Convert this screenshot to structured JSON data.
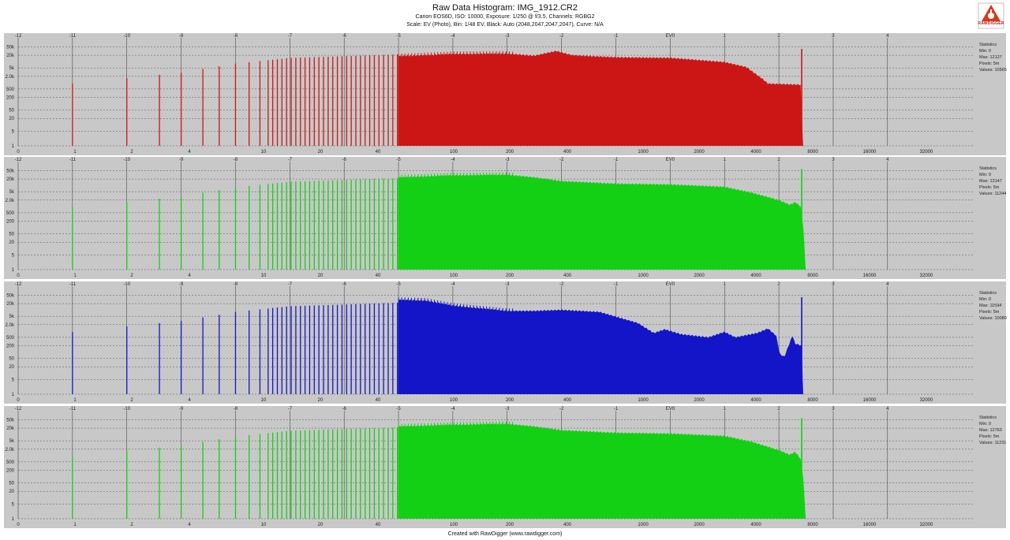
{
  "header": {
    "title": "Raw Data Histogram: IMG_1912.CR2",
    "line1": "Canon EOS6D, ISO: 10000, Exposure: 1/250 @ f/3.5, Channels: RGBG2",
    "line2": "Scale: EV (Photo), Bin: 1/48 EV, Black: Auto (2048,2047,2047,2047), Curve: N/A"
  },
  "footer": "Created with RawDigger (www.rawdigger.com)",
  "logo_text": "RAWDIGGER",
  "colors": {
    "panel_bg": "#c8c8c8",
    "red": "#cc1616",
    "green": "#14d014",
    "blue": "#1414c8",
    "grid": "#333333"
  },
  "chart_data": {
    "type": "bar",
    "ev_ticks": [
      "-12",
      "-11",
      "-10",
      "-9",
      "-8",
      "-7",
      "-6",
      "-5",
      "-4",
      "-3",
      "-2",
      "-1",
      "EV0",
      "1",
      "2",
      "3",
      "4"
    ],
    "raw_ticks": [
      "0",
      "1",
      "2",
      "4",
      "10",
      "20",
      "40",
      "100",
      "200",
      "400",
      "1000",
      "2000",
      "4000",
      "8000",
      "16000",
      "32000"
    ],
    "y_ticks": [
      "50k",
      "20k",
      "5k",
      "2.0k",
      "500",
      "200",
      "50",
      "20",
      "5",
      "1"
    ],
    "scale": "log",
    "series": [
      {
        "channel": "R",
        "stats": {
          "heading": "Statistics",
          "min": "Min: 0",
          "max": "Max: 12127",
          "pixels": "Pixels: 5m",
          "values": "Values: 10565"
        },
        "profile": [
          [
            -5,
            18000
          ],
          [
            -4,
            23000
          ],
          [
            -3,
            24000
          ],
          [
            -2.5,
            19000
          ],
          [
            -2.1,
            32000
          ],
          [
            -1.8,
            20000
          ],
          [
            -1,
            16000
          ],
          [
            0,
            15000
          ],
          [
            1,
            9500
          ],
          [
            1.4,
            5500
          ],
          [
            1.7,
            1500
          ],
          [
            1.8,
            900
          ],
          [
            2.4,
            800
          ],
          [
            2.45,
            0
          ]
        ],
        "spike_ev": 2.42,
        "spike_val": 40000
      },
      {
        "channel": "G",
        "stats": {
          "heading": "Statistics",
          "min": "Min: 0",
          "max": "Max: 13147",
          "pixels": "Pixels: 5m",
          "values": "Values: 11244"
        },
        "profile": [
          [
            -5,
            24000
          ],
          [
            -4,
            30000
          ],
          [
            -3,
            32000
          ],
          [
            -2.5,
            24000
          ],
          [
            -2,
            16000
          ],
          [
            -1,
            12000
          ],
          [
            0,
            11000
          ],
          [
            1,
            8500
          ],
          [
            1.5,
            4500
          ],
          [
            2,
            2000
          ],
          [
            2.2,
            1200
          ],
          [
            2.3,
            1600
          ],
          [
            2.4,
            1000
          ],
          [
            2.45,
            100
          ],
          [
            2.5,
            0
          ]
        ],
        "spike_ev": 2.42,
        "spike_val": 60000
      },
      {
        "channel": "B",
        "stats": {
          "heading": "Statistics",
          "min": "Min: 0",
          "max": "Max: 11594",
          "pixels": "Pixels: 5m",
          "values": "Values: 10080"
        },
        "profile": [
          [
            -5,
            30000
          ],
          [
            -4.5,
            28000
          ],
          [
            -4,
            16000
          ],
          [
            -3,
            9000
          ],
          [
            -2.5,
            9000
          ],
          [
            -2,
            10000
          ],
          [
            -1.3,
            8000
          ],
          [
            -0.6,
            2400
          ],
          [
            -0.3,
            800
          ],
          [
            -0.1,
            1200
          ],
          [
            0.2,
            700
          ],
          [
            0.7,
            500
          ],
          [
            1,
            900
          ],
          [
            1.2,
            500
          ],
          [
            1.6,
            800
          ],
          [
            1.8,
            1300
          ],
          [
            1.95,
            600
          ],
          [
            2.02,
            80
          ],
          [
            2.1,
            60
          ],
          [
            2.25,
            600
          ],
          [
            2.3,
            250
          ],
          [
            2.42,
            200
          ],
          [
            2.45,
            0
          ]
        ],
        "spike_ev": 2.42,
        "spike_val": 40000
      },
      {
        "channel": "G2",
        "stats": {
          "heading": "Statistics",
          "min": "Min: 0",
          "max": "Max: 12763",
          "pixels": "Pixels: 5m",
          "values": "Values: 11231"
        },
        "profile": [
          [
            -5,
            24000
          ],
          [
            -4,
            29000
          ],
          [
            -3,
            32000
          ],
          [
            -2.5,
            24000
          ],
          [
            -2,
            16000
          ],
          [
            -1,
            12000
          ],
          [
            0,
            11000
          ],
          [
            1,
            8500
          ],
          [
            1.5,
            4500
          ],
          [
            2,
            1800
          ],
          [
            2.2,
            1100
          ],
          [
            2.3,
            1500
          ],
          [
            2.4,
            700
          ],
          [
            2.45,
            80
          ],
          [
            2.5,
            0
          ]
        ],
        "spike_ev": 2.42,
        "spike_val": 60000
      }
    ]
  }
}
